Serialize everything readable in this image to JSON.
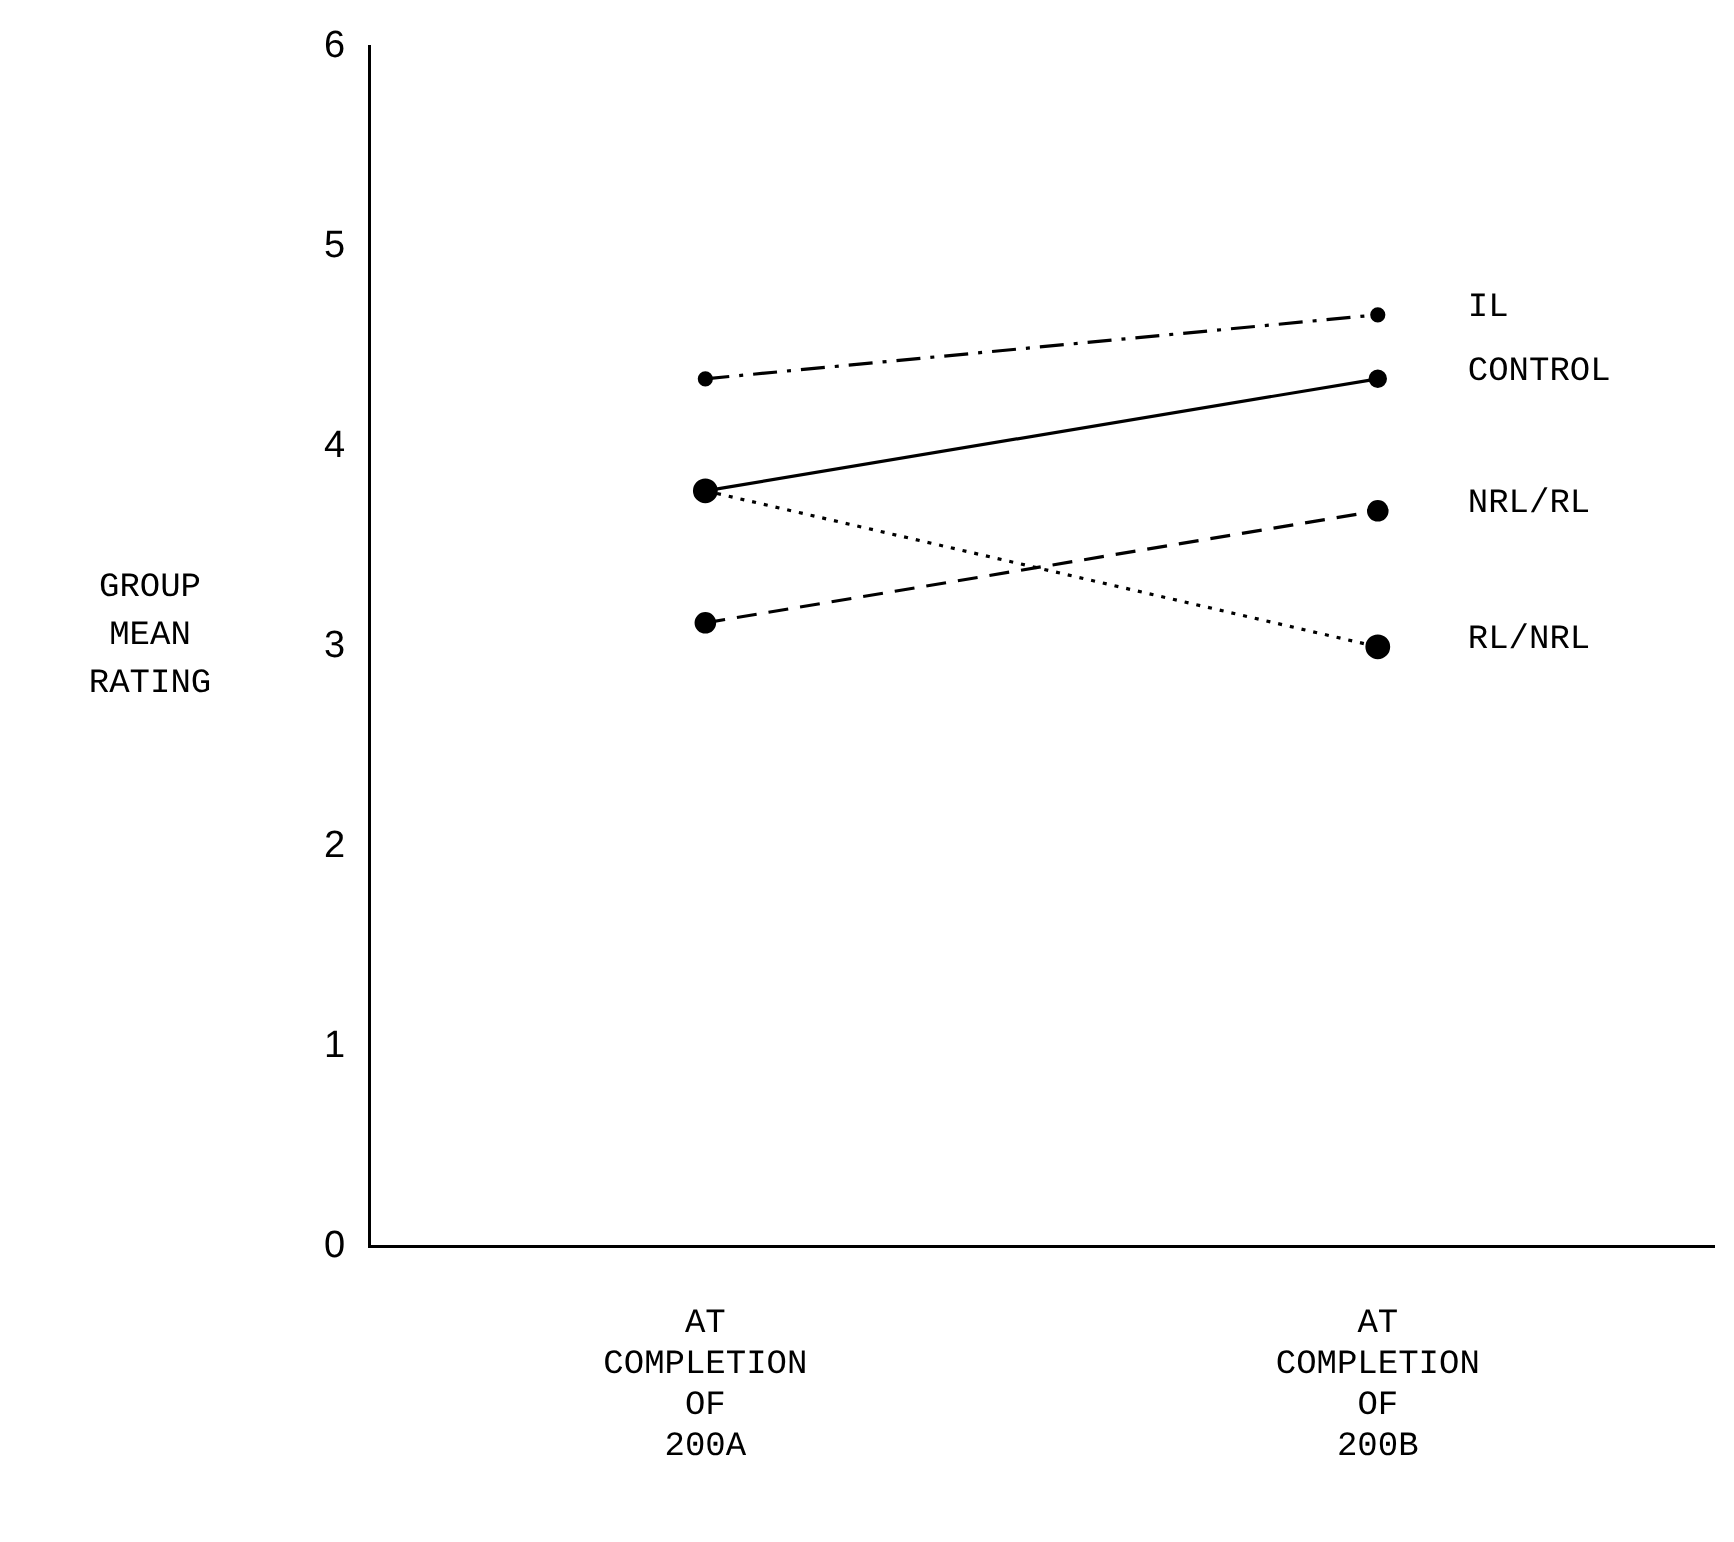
{
  "chart_data": {
    "type": "line",
    "ylabel": "GROUP MEAN RATING",
    "categories": [
      "AT COMPLETION OF 200A",
      "AT COMPLETION OF 200B"
    ],
    "ylim": [
      0,
      6
    ],
    "yticks": [
      0,
      1,
      2,
      3,
      4,
      5,
      6
    ],
    "grid": false,
    "legend": false,
    "marker": "circle",
    "series": [
      {
        "name": "IL",
        "color": "#000000",
        "line_style": "dashdot",
        "values": [
          4.34,
          4.66
        ]
      },
      {
        "name": "CONTROL",
        "color": "#000000",
        "line_style": "solid",
        "values": [
          3.78,
          4.34
        ]
      },
      {
        "name": "NRL/RL",
        "color": "#000000",
        "line_style": "dashed",
        "values": [
          3.12,
          3.68
        ]
      },
      {
        "name": "RL/NRL",
        "color": "#000000",
        "line_style": "dotted",
        "values": [
          3.78,
          3.0
        ]
      }
    ]
  }
}
